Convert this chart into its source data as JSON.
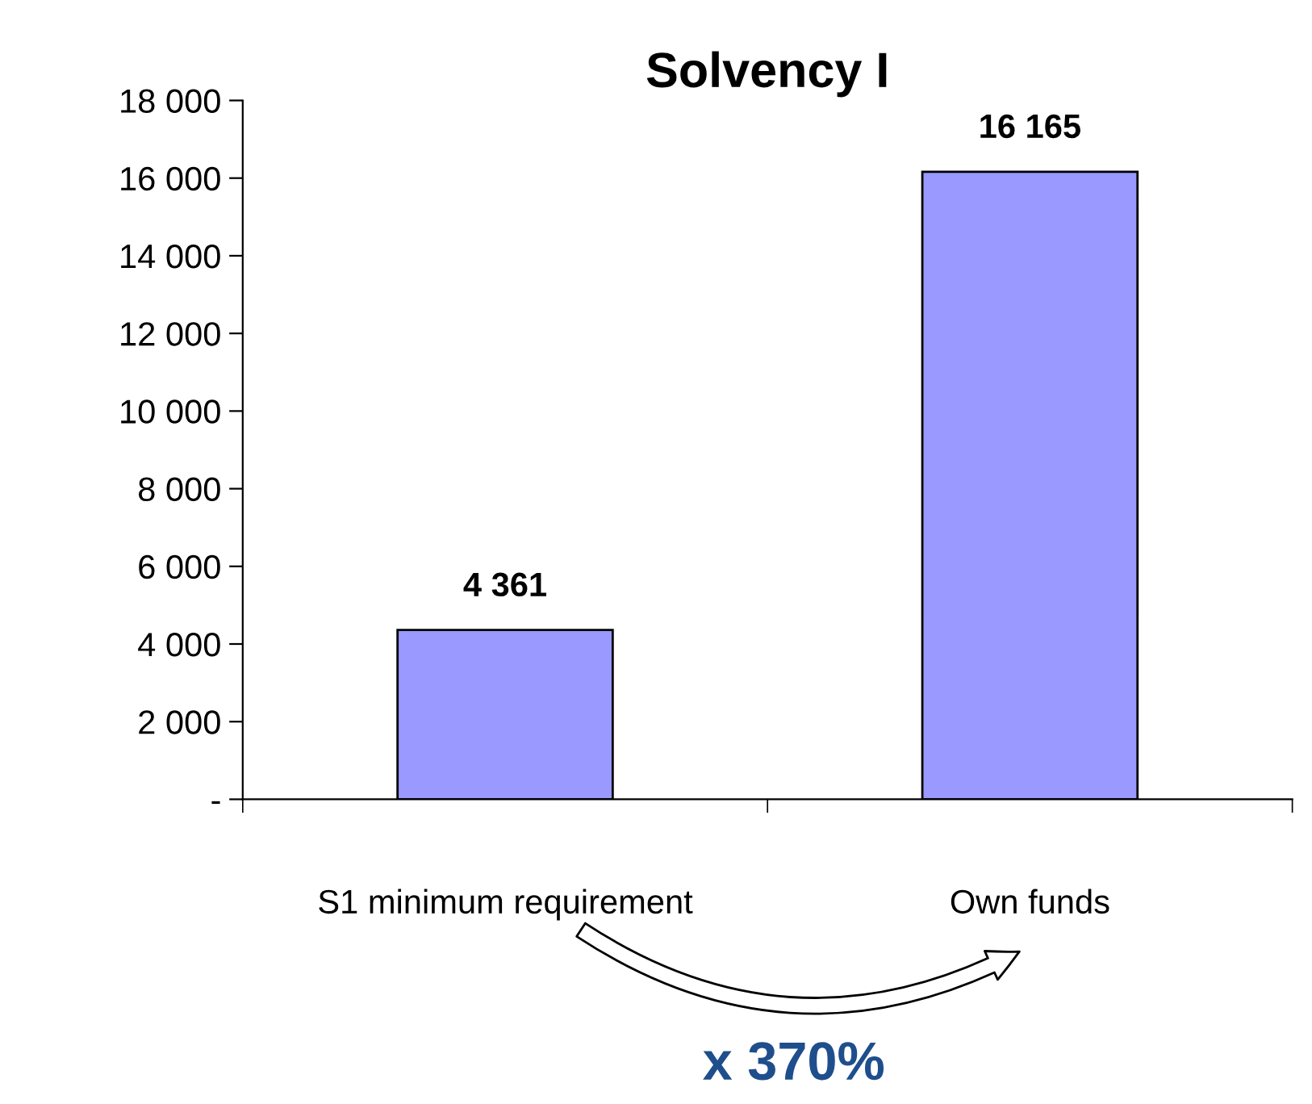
{
  "chart_data": {
    "type": "bar",
    "title": "Solvency I",
    "categories": [
      "S1 minimum requirement",
      "Own funds"
    ],
    "series": [
      {
        "color": "#9999ff",
        "values": [
          4361,
          16165
        ]
      }
    ],
    "value_labels": [
      "4 361",
      "16 165"
    ],
    "ylim": [
      0,
      18000
    ],
    "yticks": [
      {
        "value": 0,
        "label": "-"
      },
      {
        "value": 2000,
        "label": "2 000"
      },
      {
        "value": 4000,
        "label": "4 000"
      },
      {
        "value": 6000,
        "label": "6 000"
      },
      {
        "value": 8000,
        "label": "8 000"
      },
      {
        "value": 10000,
        "label": "10 000"
      },
      {
        "value": 12000,
        "label": "12 000"
      },
      {
        "value": 14000,
        "label": "14 000"
      },
      {
        "value": 16000,
        "label": "16 000"
      },
      {
        "value": 18000,
        "label": "18 000"
      }
    ],
    "grid": false,
    "legend": false,
    "annotations": [
      "x 370%"
    ]
  }
}
